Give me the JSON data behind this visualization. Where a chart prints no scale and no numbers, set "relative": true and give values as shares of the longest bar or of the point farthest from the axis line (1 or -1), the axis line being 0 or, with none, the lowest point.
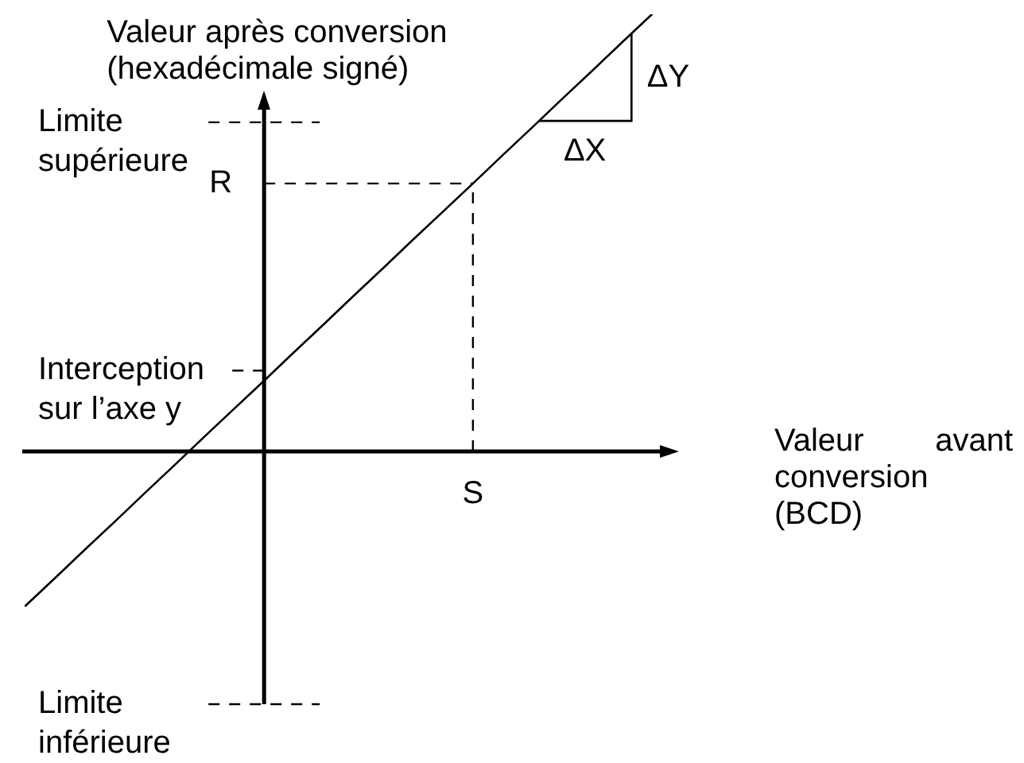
{
  "chart_data": {
    "type": "line",
    "relative": true,
    "xlabel": "Valeur avant conversion (BCD)",
    "ylabel": "Valeur après conversion (hexadécimale signé)",
    "categories": [
      null,
      null,
      null,
      null,
      null,
      null,
      null,
      null,
      null,
      null,
      null,
      null,
      null,
      null,
      null,
      null,
      null,
      null,
      null,
      null,
      null,
      null
    ],
    "values": [
      -0.353,
      -0.289,
      -0.224,
      -0.16,
      -0.095,
      -0.031,
      0.034,
      0.098,
      0.162,
      0.227,
      0.291,
      0.356,
      0.42,
      0.485,
      0.549,
      0.613,
      0.678,
      0.742,
      0.807,
      0.871,
      0.936,
      1
    ],
    "color": "#000000",
    "marker": "none",
    "line_style": "solid",
    "ref_lines": [
      {
        "axis": "y",
        "value": 0.753,
        "label": "Limite supérieure",
        "line_style": "dashed"
      },
      {
        "axis": "y",
        "value": 0.613,
        "label": "R",
        "line_style": "dashed"
      },
      {
        "axis": "y",
        "value": 0.185,
        "label": "Interception sur l’axe y",
        "line_style": "dashed"
      },
      {
        "axis": "y",
        "value": -0.578,
        "label": "Limite inférieure",
        "line_style": "dashed"
      }
    ],
    "annotations": [
      "ΔX",
      "ΔY",
      {
        "text": "S",
        "y": 0.613
      }
    ]
  }
}
